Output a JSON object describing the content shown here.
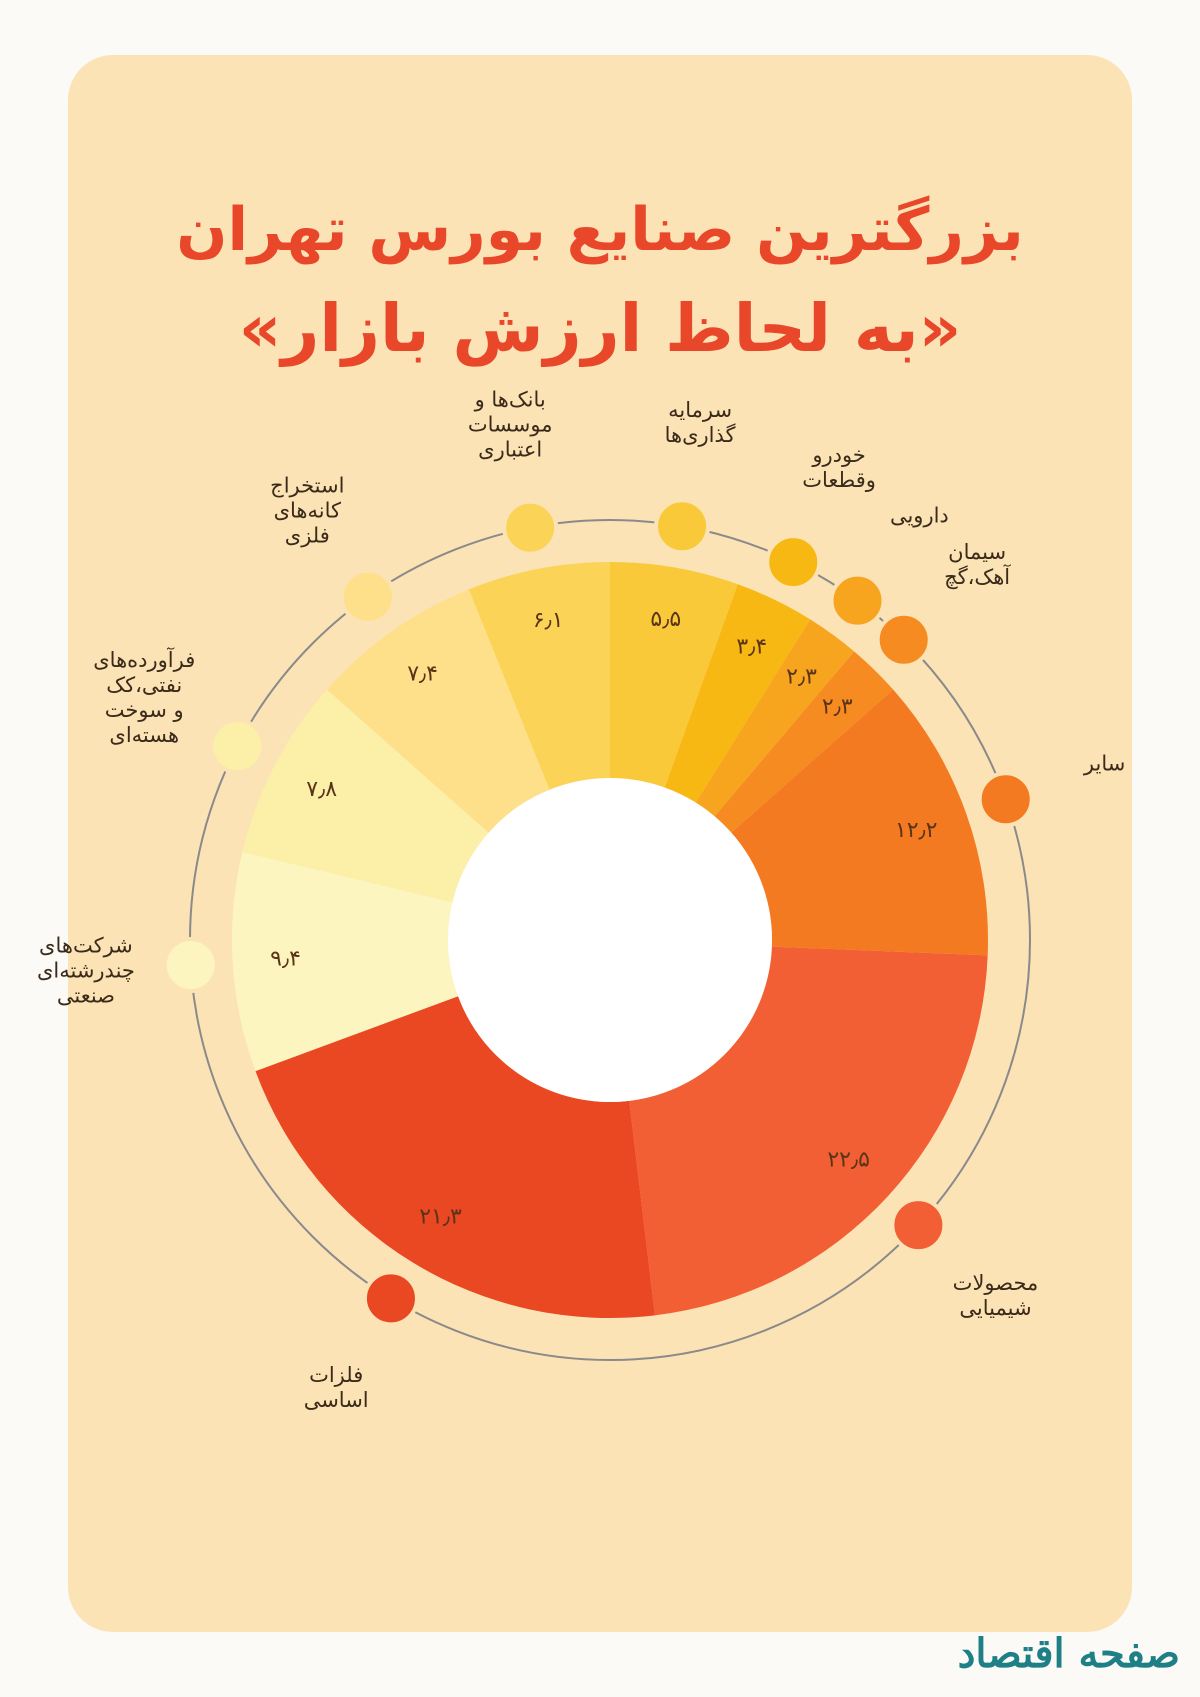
{
  "chart_data": {
    "type": "donut",
    "title": "بزرگترین صنایع بورس تهران",
    "subtitle": "«به لحاظ ارزش بازار»",
    "categories": [
      "سرمایه\nگذاری‌ها",
      "خودرو\nوقطعات",
      "دارویی",
      "سیمان\nآهک،گچ",
      "سایر",
      "محصولات\nشیمیایی",
      "فلزات\nاساسی",
      "شرکت‌های\nچندرشته‌ای\nصنعتی",
      "فرآورده‌های\nنفتی،کک\nو سوخت\nهسته‌ای",
      "استخراج\nکانه‌های\nفلزی",
      "بانک‌ها و\nموسسات\nاعتباری"
    ],
    "values": [
      5.5,
      3.4,
      2.3,
      2.3,
      12.2,
      22.5,
      21.3,
      9.4,
      7.8,
      7.4,
      6.1
    ],
    "value_labels": [
      "۵٫۵",
      "۳٫۴",
      "۲٫۳",
      "۲٫۳",
      "۱۲٫۲",
      "۲۲٫۵",
      "۲۱٫۳",
      "۹٫۴",
      "۷٫۸",
      "۷٫۴",
      "۶٫۱"
    ],
    "colors": [
      "#f9c93a",
      "#f8b814",
      "#f7a41e",
      "#f58b21",
      "#f47a22",
      "#f25f34",
      "#ea4723",
      "#fdf5c0",
      "#fcefa7",
      "#fde089",
      "#fbd356"
    ],
    "logo": "صفحه اقتصاد"
  }
}
